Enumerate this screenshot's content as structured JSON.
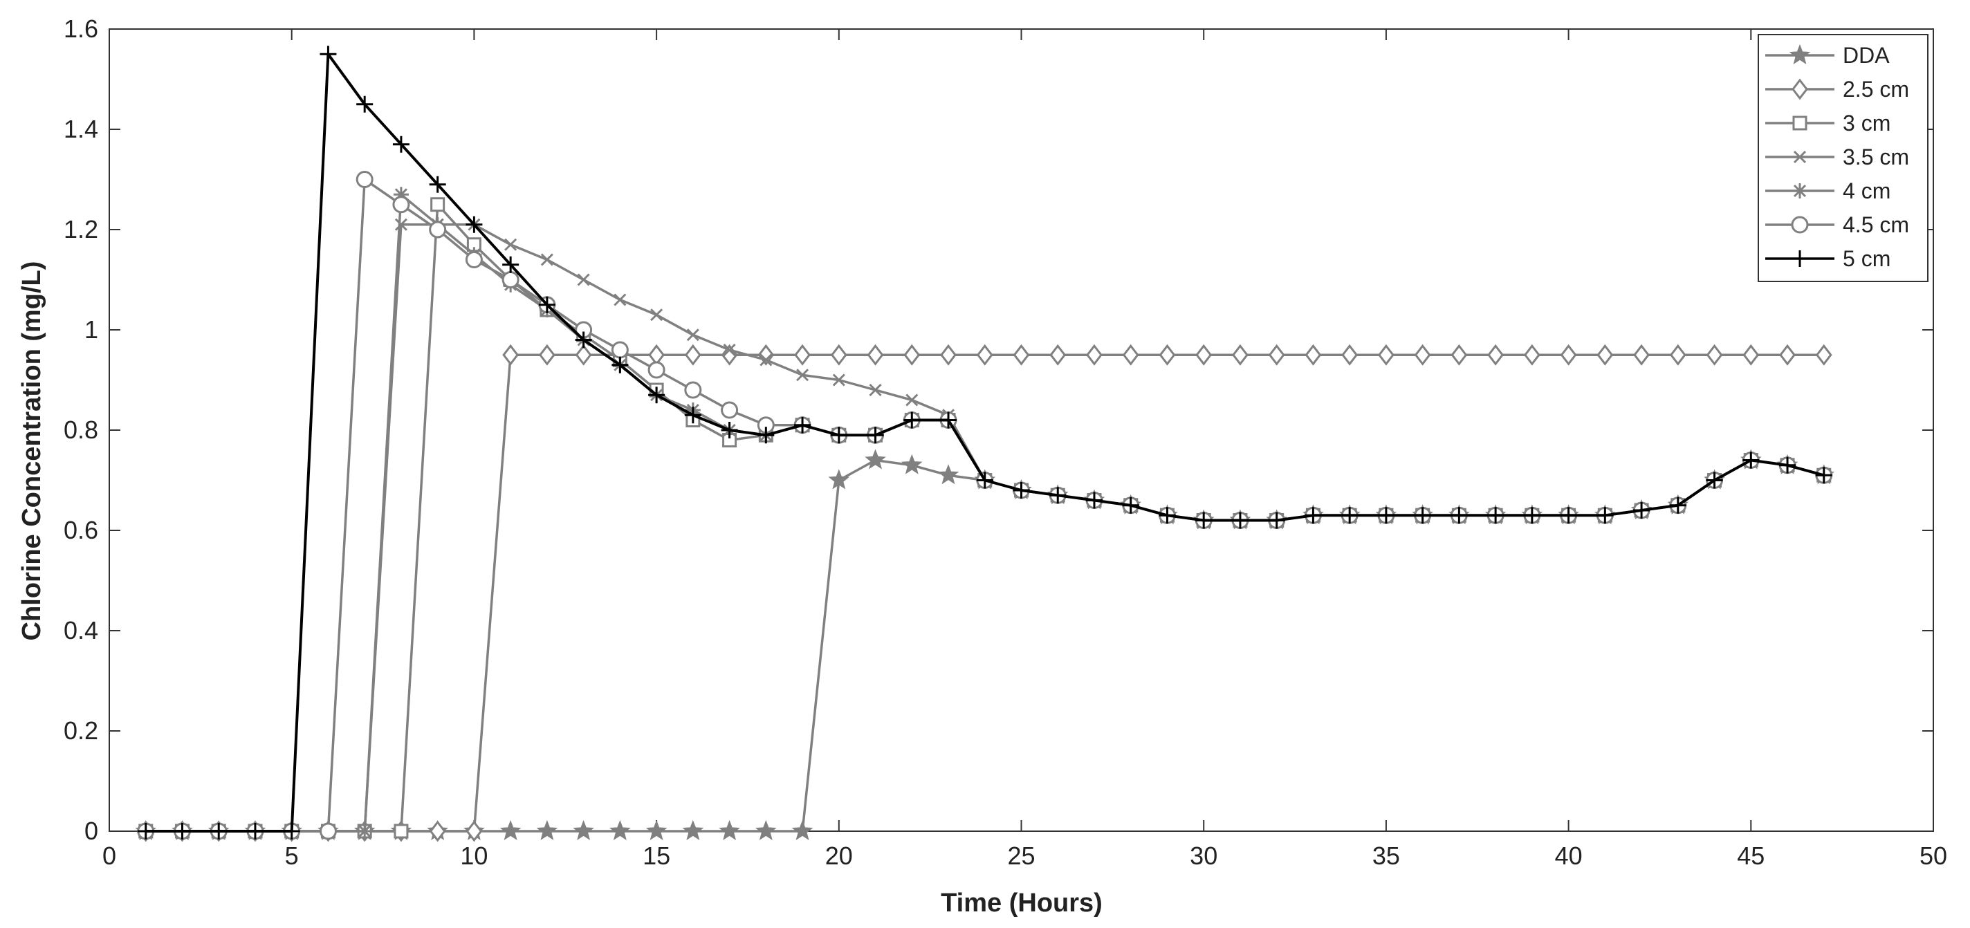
{
  "chart_data": {
    "type": "line",
    "title": "",
    "xlabel": "Time (Hours)",
    "ylabel": "Chlorine Concentration (mg/L)",
    "xlim": [
      0,
      50
    ],
    "ylim": [
      0,
      1.6
    ],
    "x_ticks": [
      0,
      5,
      10,
      15,
      20,
      25,
      30,
      35,
      40,
      45,
      50
    ],
    "y_ticks": [
      0,
      0.2,
      0.4,
      0.6,
      0.8,
      1,
      1.2,
      1.4,
      1.6
    ],
    "x_tick_labels": [
      "0",
      "5",
      "10",
      "15",
      "20",
      "25",
      "30",
      "35",
      "40",
      "45",
      "50"
    ],
    "y_tick_labels": [
      "0",
      "0.2",
      "0.4",
      "0.6",
      "0.8",
      "1",
      "1.2",
      "1.4",
      "1.6"
    ],
    "grid": false,
    "legend_position": "top-right",
    "series": [
      {
        "name": "DDA",
        "marker": "star",
        "color": "#808080",
        "x": [
          1,
          2,
          3,
          4,
          5,
          6,
          7,
          8,
          9,
          10,
          11,
          12,
          13,
          14,
          15,
          16,
          17,
          18,
          19,
          20,
          21,
          22,
          23,
          24,
          25,
          26,
          27,
          28,
          29,
          30,
          31,
          32,
          33,
          34,
          35,
          36,
          37,
          38,
          39,
          40,
          41,
          42,
          43,
          44,
          45,
          46,
          47
        ],
        "y": [
          0,
          0,
          0,
          0,
          0,
          0,
          0,
          0,
          0,
          0,
          0,
          0,
          0,
          0,
          0,
          0,
          0,
          0,
          0,
          0.7,
          0.74,
          0.73,
          0.71,
          0.7,
          0.68,
          0.67,
          0.66,
          0.65,
          0.63,
          0.62,
          0.62,
          0.62,
          0.63,
          0.63,
          0.63,
          0.63,
          0.63,
          0.63,
          0.63,
          0.63,
          0.63,
          0.64,
          0.65,
          0.7,
          0.74,
          0.73,
          0.71
        ]
      },
      {
        "name": "2.5 cm",
        "marker": "diamond",
        "color": "#808080",
        "x": [
          1,
          2,
          3,
          4,
          5,
          6,
          7,
          8,
          9,
          10,
          11,
          12,
          13,
          14,
          15,
          16,
          17,
          18,
          19,
          20,
          21,
          22,
          23,
          24,
          25,
          26,
          27,
          28,
          29,
          30,
          31,
          32,
          33,
          34,
          35,
          36,
          37,
          38,
          39,
          40,
          41,
          42,
          43,
          44,
          45,
          46,
          47
        ],
        "y": [
          0,
          0,
          0,
          0,
          0,
          0,
          0,
          0,
          0,
          0,
          0.95,
          0.95,
          0.95,
          0.95,
          0.95,
          0.95,
          0.95,
          0.95,
          0.95,
          0.95,
          0.95,
          0.95,
          0.95,
          0.95,
          0.95,
          0.95,
          0.95,
          0.95,
          0.95,
          0.95,
          0.95,
          0.95,
          0.95,
          0.95,
          0.95,
          0.95,
          0.95,
          0.95,
          0.95,
          0.95,
          0.95,
          0.95,
          0.95,
          0.95,
          0.95,
          0.95,
          0.95
        ]
      },
      {
        "name": "3 cm",
        "marker": "square",
        "color": "#808080",
        "x": [
          1,
          2,
          3,
          4,
          5,
          6,
          7,
          8,
          9,
          10,
          11,
          12,
          13,
          14,
          15,
          16,
          17,
          18,
          19,
          20,
          21,
          22,
          23,
          24,
          25,
          26,
          27,
          28,
          29,
          30,
          31,
          32,
          33,
          34,
          35,
          36,
          37,
          38,
          39,
          40,
          41,
          42,
          43,
          44,
          45,
          46,
          47
        ],
        "y": [
          0,
          0,
          0,
          0,
          0,
          0,
          0,
          0,
          1.25,
          1.17,
          1.1,
          1.04,
          0.99,
          0.94,
          0.88,
          0.82,
          0.78,
          0.79,
          0.81,
          0.79,
          0.79,
          0.82,
          0.82,
          0.7,
          0.68,
          0.67,
          0.66,
          0.65,
          0.63,
          0.62,
          0.62,
          0.62,
          0.63,
          0.63,
          0.63,
          0.63,
          0.63,
          0.63,
          0.63,
          0.63,
          0.63,
          0.64,
          0.65,
          0.7,
          0.74,
          0.73,
          0.71
        ]
      },
      {
        "name": "3.5 cm",
        "marker": "x",
        "color": "#808080",
        "x": [
          1,
          2,
          3,
          4,
          5,
          6,
          7,
          8,
          9,
          10,
          11,
          12,
          13,
          14,
          15,
          16,
          17,
          18,
          19,
          20,
          21,
          22,
          23,
          24,
          25,
          26,
          27,
          28,
          29,
          30,
          31,
          32,
          33,
          34,
          35,
          36,
          37,
          38,
          39,
          40,
          41,
          42,
          43,
          44,
          45,
          46,
          47
        ],
        "y": [
          0,
          0,
          0,
          0,
          0,
          0,
          0,
          1.21,
          1.21,
          1.21,
          1.17,
          1.14,
          1.1,
          1.06,
          1.03,
          0.99,
          0.96,
          0.94,
          0.91,
          0.9,
          0.88,
          0.86,
          0.83,
          0.7,
          0.68,
          0.67,
          0.66,
          0.65,
          0.63,
          0.62,
          0.62,
          0.62,
          0.63,
          0.63,
          0.63,
          0.63,
          0.63,
          0.63,
          0.63,
          0.63,
          0.63,
          0.64,
          0.65,
          0.7,
          0.74,
          0.73,
          0.71
        ]
      },
      {
        "name": "4 cm",
        "marker": "asterisk",
        "color": "#808080",
        "x": [
          1,
          2,
          3,
          4,
          5,
          6,
          7,
          8,
          9,
          10,
          11,
          12,
          13,
          14,
          15,
          16,
          17,
          18,
          19,
          20,
          21,
          22,
          23,
          24,
          25,
          26,
          27,
          28,
          29,
          30,
          31,
          32,
          33,
          34,
          35,
          36,
          37,
          38,
          39,
          40,
          41,
          42,
          43,
          44,
          45,
          46,
          47
        ],
        "y": [
          0,
          0,
          0,
          0,
          0,
          0,
          0,
          1.27,
          1.21,
          1.15,
          1.09,
          1.04,
          0.98,
          0.93,
          0.87,
          0.84,
          0.8,
          0.79,
          0.81,
          0.79,
          0.79,
          0.82,
          0.82,
          0.7,
          0.68,
          0.67,
          0.66,
          0.65,
          0.63,
          0.62,
          0.62,
          0.62,
          0.63,
          0.63,
          0.63,
          0.63,
          0.63,
          0.63,
          0.63,
          0.63,
          0.63,
          0.64,
          0.65,
          0.7,
          0.74,
          0.73,
          0.71
        ]
      },
      {
        "name": "4.5 cm",
        "marker": "circle",
        "color": "#808080",
        "x": [
          1,
          2,
          3,
          4,
          5,
          6,
          7,
          8,
          9,
          10,
          11,
          12,
          13,
          14,
          15,
          16,
          17,
          18,
          19,
          20,
          21,
          22,
          23,
          24,
          25,
          26,
          27,
          28,
          29,
          30,
          31,
          32,
          33,
          34,
          35,
          36,
          37,
          38,
          39,
          40,
          41,
          42,
          43,
          44,
          45,
          46,
          47
        ],
        "y": [
          0,
          0,
          0,
          0,
          0,
          0,
          1.3,
          1.25,
          1.2,
          1.14,
          1.1,
          1.05,
          1.0,
          0.96,
          0.92,
          0.88,
          0.84,
          0.81,
          0.81,
          0.79,
          0.79,
          0.82,
          0.82,
          0.7,
          0.68,
          0.67,
          0.66,
          0.65,
          0.63,
          0.62,
          0.62,
          0.62,
          0.63,
          0.63,
          0.63,
          0.63,
          0.63,
          0.63,
          0.63,
          0.63,
          0.63,
          0.64,
          0.65,
          0.7,
          0.74,
          0.73,
          0.71
        ]
      },
      {
        "name": "5 cm",
        "marker": "plus",
        "color": "#000000",
        "x": [
          1,
          2,
          3,
          4,
          5,
          6,
          7,
          8,
          9,
          10,
          11,
          12,
          13,
          14,
          15,
          16,
          17,
          18,
          19,
          20,
          21,
          22,
          23,
          24,
          25,
          26,
          27,
          28,
          29,
          30,
          31,
          32,
          33,
          34,
          35,
          36,
          37,
          38,
          39,
          40,
          41,
          42,
          43,
          44,
          45,
          46,
          47
        ],
        "y": [
          0,
          0,
          0,
          0,
          0,
          1.55,
          1.45,
          1.37,
          1.29,
          1.21,
          1.13,
          1.05,
          0.98,
          0.93,
          0.87,
          0.83,
          0.8,
          0.79,
          0.81,
          0.79,
          0.79,
          0.82,
          0.82,
          0.7,
          0.68,
          0.67,
          0.66,
          0.65,
          0.63,
          0.62,
          0.62,
          0.62,
          0.63,
          0.63,
          0.63,
          0.63,
          0.63,
          0.63,
          0.63,
          0.63,
          0.63,
          0.64,
          0.65,
          0.7,
          0.74,
          0.73,
          0.71
        ]
      }
    ]
  }
}
